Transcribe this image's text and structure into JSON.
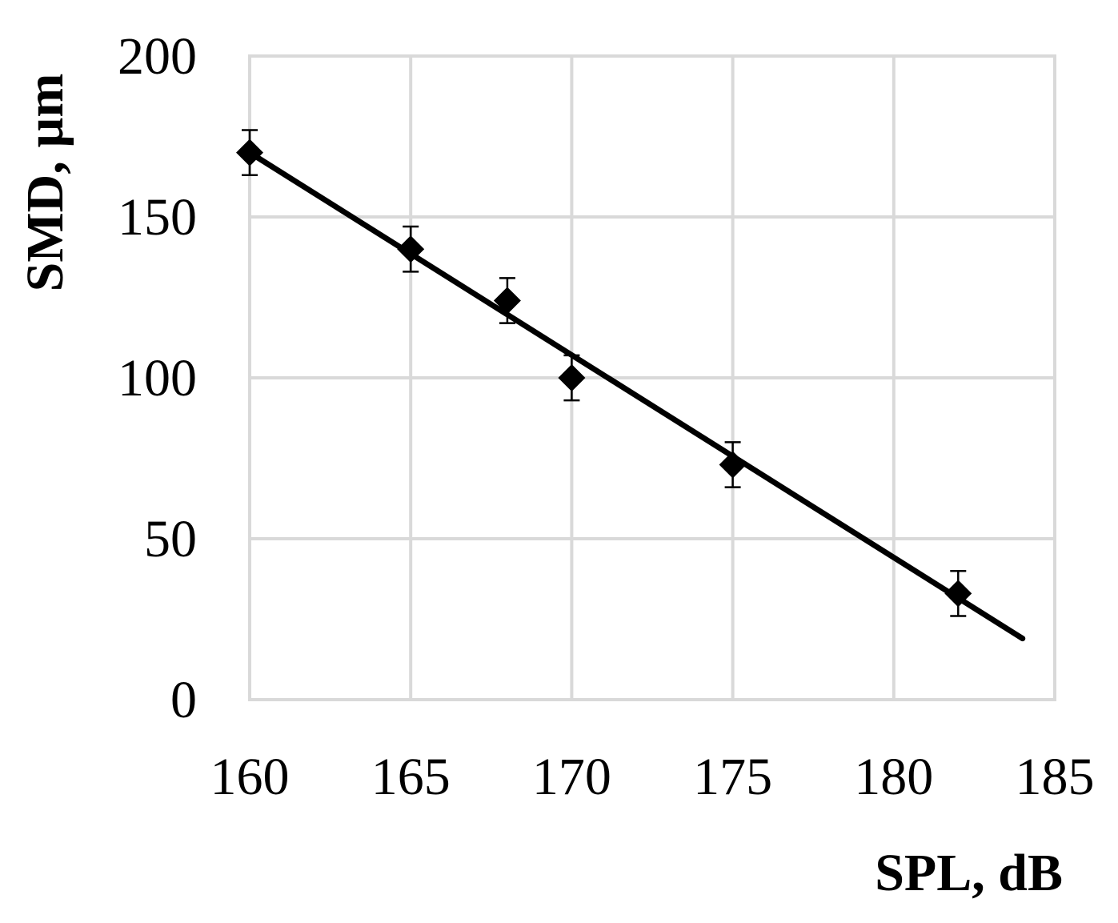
{
  "chart_data": {
    "type": "scatter",
    "xlabel": "SPL, dB",
    "ylabel": "SMD, µm",
    "xlim": [
      160,
      185
    ],
    "ylim": [
      0,
      200
    ],
    "x_ticks": [
      "160",
      "165",
      "170",
      "175",
      "180",
      "185"
    ],
    "y_ticks": [
      "0",
      "50",
      "100",
      "150",
      "200"
    ],
    "grid": true,
    "legend": "none",
    "series": [
      {
        "marker": "diamond",
        "color": "#000000",
        "points": [
          {
            "x": 160,
            "y": 170,
            "err": 7
          },
          {
            "x": 165,
            "y": 140,
            "err": 7
          },
          {
            "x": 168,
            "y": 124,
            "err": 7
          },
          {
            "x": 170,
            "y": 100,
            "err": 7
          },
          {
            "x": 175,
            "y": 73,
            "err": 7
          },
          {
            "x": 182,
            "y": 33,
            "err": 7
          }
        ]
      }
    ],
    "trendline": {
      "type": "linear",
      "x": [
        160,
        184
      ],
      "y": [
        170,
        19
      ]
    }
  }
}
